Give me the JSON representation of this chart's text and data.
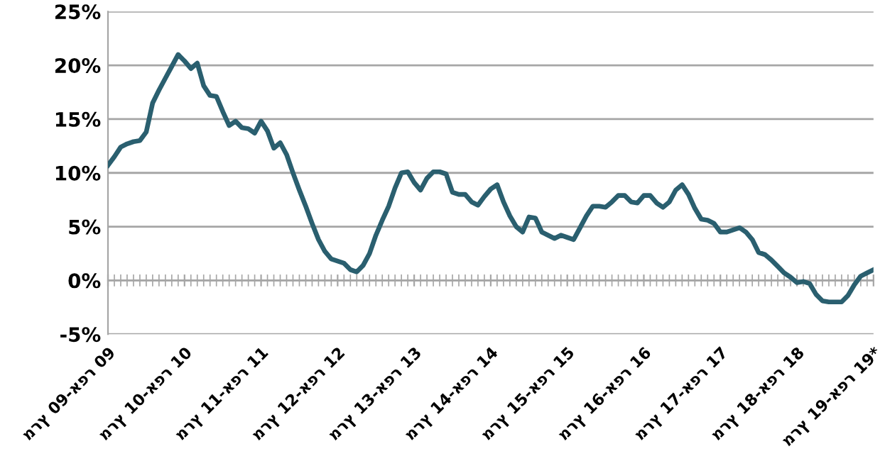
{
  "chart_data": {
    "type": "line",
    "categories": [
      "מרץ 09-אפר 09",
      null,
      null,
      null,
      null,
      null,
      null,
      null,
      null,
      null,
      null,
      null,
      "מרץ 10-אפר 10",
      null,
      null,
      null,
      null,
      null,
      null,
      null,
      null,
      null,
      null,
      null,
      "מרץ 11-אפר 11",
      null,
      null,
      null,
      null,
      null,
      null,
      null,
      null,
      null,
      null,
      null,
      "מרץ 12-אפר 12",
      null,
      null,
      null,
      null,
      null,
      null,
      null,
      null,
      null,
      null,
      null,
      "מרץ 13-אפר 13",
      null,
      null,
      null,
      null,
      null,
      null,
      null,
      null,
      null,
      null,
      null,
      "מרץ 14-אפר 14",
      null,
      null,
      null,
      null,
      null,
      null,
      null,
      null,
      null,
      null,
      null,
      "מרץ 15-אפר 15",
      null,
      null,
      null,
      null,
      null,
      null,
      null,
      null,
      null,
      null,
      null,
      "מרץ 16-אפר 16",
      null,
      null,
      null,
      null,
      null,
      null,
      null,
      null,
      null,
      null,
      null,
      "מרץ 17-אפר 17",
      null,
      null,
      null,
      null,
      null,
      null,
      null,
      null,
      null,
      null,
      null,
      "מרץ 18-אפר 18",
      null,
      null,
      null,
      null,
      null,
      null,
      null,
      null,
      null,
      null,
      null,
      "מרץ 19-אפר 19*"
    ],
    "series": [
      {
        "color": "#2a5f6f",
        "values": [
          10.7,
          11.5,
          12.4,
          12.7,
          12.9,
          13.0,
          13.8,
          16.5,
          17.7,
          18.8,
          19.9,
          21.0,
          20.4,
          19.7,
          20.2,
          18.1,
          17.2,
          17.1,
          15.7,
          14.4,
          14.8,
          14.2,
          14.1,
          13.7,
          14.8,
          13.9,
          12.3,
          12.8,
          11.7,
          10.0,
          8.4,
          6.9,
          5.3,
          3.8,
          2.7,
          2.0,
          1.8,
          1.6,
          1.0,
          0.8,
          1.4,
          2.5,
          4.2,
          5.6,
          6.9,
          8.6,
          10.0,
          10.1,
          9.1,
          8.4,
          9.5,
          10.1,
          10.1,
          9.9,
          8.2,
          8.0,
          8.0,
          7.3,
          7.0,
          7.8,
          8.5,
          8.9,
          7.3,
          6.0,
          5.0,
          4.5,
          5.9,
          5.8,
          4.5,
          4.2,
          3.9,
          4.2,
          4.0,
          3.8,
          4.9,
          6.0,
          6.9,
          6.9,
          6.8,
          7.3,
          7.9,
          7.9,
          7.3,
          7.2,
          7.9,
          7.9,
          7.2,
          6.8,
          7.3,
          8.4,
          8.9,
          8.0,
          6.7,
          5.7,
          5.6,
          5.3,
          4.5,
          4.5,
          4.7,
          4.9,
          4.5,
          3.8,
          2.6,
          2.4,
          1.9,
          1.3,
          0.7,
          0.3,
          -0.2,
          -0.1,
          -0.3,
          -1.3,
          -1.9,
          -2.0,
          -2.0,
          -2.0,
          -1.4,
          -0.4,
          0.4,
          0.7,
          1.0
        ]
      }
    ],
    "ylim": [
      -5,
      25
    ],
    "yticks": [
      {
        "value": -5,
        "label": "-5%"
      },
      {
        "value": 0,
        "label": "0%"
      },
      {
        "value": 5,
        "label": "5%"
      },
      {
        "value": 10,
        "label": "10%"
      },
      {
        "value": 15,
        "label": "15%"
      },
      {
        "value": 20,
        "label": "20%"
      },
      {
        "value": 25,
        "label": "25%"
      }
    ],
    "grid": "y",
    "line_style": "solid",
    "marker": "none"
  }
}
